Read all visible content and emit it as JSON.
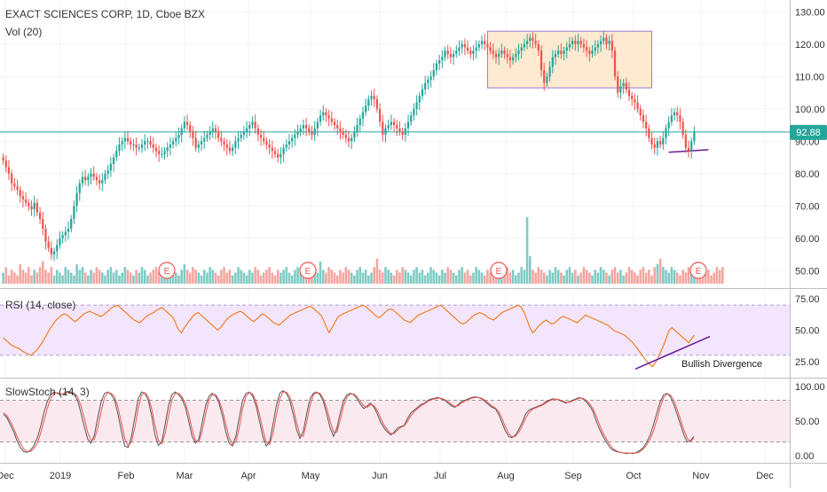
{
  "header": {
    "symbol_title": "EXACT SCIENCES CORP, 1D, Cboe BZX",
    "volume_label": "Vol (20)"
  },
  "colors": {
    "up": "#26a69a",
    "down": "#ef5350",
    "vol_up": "#80cbc4",
    "vol_down": "#f4a5a0",
    "price_line": "#26a69a",
    "range_box_fill": "#fde6c8",
    "range_box_border": "#9c7bd1",
    "trendline": "#6a1b9a",
    "rsi_line": "#ef6c00",
    "rsi_band": "#f3e5fc",
    "stoch_k": "#555555",
    "stoch_d": "#ef5350",
    "stoch_band": "#fbe9f0"
  },
  "chart_data": [
    {
      "type": "candlestick",
      "title": "EXACT SCIENCES CORP, 1D, Cboe BZX",
      "price_axis_ticks": [
        "130.00",
        "120.00",
        "110.00",
        "100.00",
        "90.00",
        "80.00",
        "70.00",
        "60.00",
        "50.00"
      ],
      "ylim": [
        46,
        132
      ],
      "last_price": 92.88,
      "last_price_label": "92.88",
      "closes": [
        84,
        82,
        80,
        77,
        76,
        75,
        73,
        72,
        71,
        70,
        69,
        71,
        68,
        66,
        63,
        59,
        57,
        55,
        56,
        58,
        60,
        61,
        62,
        63,
        66,
        70,
        74,
        77,
        79,
        78,
        79,
        80,
        79,
        78,
        77,
        78,
        80,
        81,
        83,
        85,
        87,
        89,
        90,
        91,
        90,
        89,
        89,
        88,
        88,
        89,
        90,
        90,
        89,
        88,
        87,
        86,
        86,
        87,
        88,
        89,
        90,
        91,
        92,
        94,
        96,
        95,
        93,
        91,
        88,
        89,
        90,
        91,
        92,
        93,
        94,
        93,
        91,
        90,
        89,
        88,
        87,
        88,
        90,
        91,
        92,
        93,
        94,
        95,
        96,
        94,
        92,
        91,
        90,
        89,
        88,
        87,
        86,
        85,
        86,
        88,
        89,
        90,
        91,
        92,
        93,
        94,
        95,
        94,
        93,
        92,
        94,
        96,
        98,
        99,
        98,
        97,
        96,
        95,
        94,
        93,
        92,
        91,
        90,
        91,
        93,
        95,
        97,
        99,
        101,
        103,
        104,
        103,
        100,
        96,
        92,
        94,
        95,
        96,
        95,
        94,
        93,
        92,
        94,
        96,
        98,
        100,
        102,
        104,
        106,
        108,
        109,
        110,
        112,
        114,
        115,
        116,
        118,
        117,
        116,
        117,
        118,
        119,
        120,
        119,
        118,
        117,
        118,
        119,
        120,
        121,
        120,
        119,
        118,
        117,
        116,
        117,
        118,
        117,
        116,
        115,
        116,
        117,
        118,
        119,
        120,
        121,
        122,
        121,
        120,
        118,
        112,
        108,
        110,
        113,
        116,
        117,
        118,
        117,
        118,
        119,
        120,
        121,
        120,
        121,
        120,
        119,
        118,
        117,
        118,
        119,
        120,
        121,
        122,
        120,
        121,
        118,
        110,
        105,
        107,
        108,
        106,
        104,
        103,
        102,
        100,
        98,
        96,
        94,
        91,
        89,
        88,
        90,
        89,
        91,
        94,
        96,
        98,
        99,
        98,
        96,
        92,
        88,
        87,
        90,
        93
      ],
      "volumes": [
        4,
        6,
        3,
        5,
        4,
        3,
        7,
        5,
        4,
        6,
        3,
        5,
        4,
        6,
        8,
        5,
        4,
        6,
        3,
        5,
        4,
        3,
        6,
        5,
        4,
        3,
        7,
        5,
        6,
        4,
        3,
        5,
        4,
        6,
        5,
        4,
        3,
        5,
        6,
        4,
        5,
        3,
        4,
        6,
        5,
        4,
        3,
        5,
        4,
        6,
        5,
        3,
        4,
        5,
        6,
        4,
        3,
        5,
        4,
        5,
        6,
        4,
        3,
        5,
        7,
        5,
        4,
        6,
        5,
        4,
        3,
        5,
        4,
        6,
        5,
        4,
        3,
        5,
        6,
        4,
        5,
        3,
        4,
        6,
        5,
        4,
        3,
        5,
        4,
        6,
        5,
        3,
        4,
        5,
        6,
        4,
        3,
        5,
        4,
        5,
        6,
        4,
        3,
        5,
        6,
        4,
        5,
        3,
        4,
        6,
        5,
        4,
        8,
        5,
        4,
        6,
        5,
        4,
        3,
        5,
        4,
        6,
        5,
        4,
        3,
        5,
        6,
        4,
        5,
        3,
        4,
        6,
        9,
        5,
        4,
        6,
        5,
        4,
        3,
        5,
        4,
        6,
        5,
        4,
        3,
        5,
        6,
        4,
        5,
        3,
        4,
        6,
        5,
        4,
        3,
        5,
        4,
        6,
        5,
        4,
        3,
        5,
        6,
        4,
        5,
        3,
        4,
        6,
        5,
        4,
        3,
        5,
        4,
        6,
        5,
        4,
        3,
        5,
        6,
        4,
        5,
        3,
        4,
        6,
        5,
        24,
        10,
        5,
        4,
        6,
        5,
        4,
        3,
        5,
        4,
        6,
        5,
        4,
        3,
        5,
        6,
        4,
        5,
        3,
        4,
        6,
        5,
        4,
        3,
        5,
        4,
        6,
        5,
        4,
        3,
        5,
        6,
        4,
        5,
        3,
        4,
        6,
        5,
        4,
        3,
        5,
        6,
        4,
        5,
        3,
        6,
        7,
        9,
        6,
        5,
        4,
        6,
        5,
        4,
        3,
        5,
        4,
        6,
        5,
        4,
        3,
        5,
        6,
        4,
        5,
        3,
        4,
        6,
        5,
        6
      ]
    },
    {
      "type": "line",
      "title": "RSI (14, close)",
      "axis_ticks": [
        "75.00",
        "50.00",
        "25.00"
      ],
      "ylim": [
        15,
        80
      ],
      "band": [
        30,
        70
      ],
      "values": [
        44,
        42,
        40,
        38,
        37,
        36,
        35,
        33,
        32,
        31,
        30,
        32,
        34,
        37,
        40,
        44,
        48,
        52,
        55,
        58,
        60,
        62,
        63,
        62,
        60,
        58,
        57,
        59,
        61,
        63,
        64,
        65,
        64,
        63,
        62,
        61,
        62,
        64,
        66,
        68,
        69,
        70,
        68,
        66,
        64,
        62,
        60,
        58,
        57,
        56,
        58,
        60,
        62,
        63,
        64,
        66,
        67,
        68,
        66,
        64,
        62,
        60,
        55,
        50,
        48,
        52,
        55,
        58,
        61,
        63,
        64,
        62,
        60,
        58,
        56,
        54,
        52,
        50,
        52,
        55,
        58,
        60,
        62,
        63,
        64,
        65,
        64,
        62,
        60,
        58,
        57,
        59,
        61,
        63,
        62,
        60,
        58,
        56,
        55,
        54,
        56,
        58,
        60,
        62,
        63,
        64,
        65,
        66,
        67,
        68,
        69,
        68,
        66,
        64,
        62,
        58,
        52,
        48,
        52,
        56,
        60,
        62,
        63,
        64,
        65,
        66,
        67,
        68,
        69,
        70,
        69,
        67,
        65,
        63,
        61,
        60,
        62,
        64,
        66,
        67,
        66,
        64,
        62,
        60,
        58,
        57,
        56,
        58,
        60,
        62,
        63,
        64,
        65,
        66,
        67,
        68,
        69,
        70,
        68,
        66,
        64,
        62,
        60,
        58,
        56,
        55,
        56,
        58,
        60,
        62,
        63,
        64,
        63,
        62,
        60,
        59,
        58,
        60,
        62,
        64,
        65,
        66,
        67,
        68,
        69,
        70,
        68,
        64,
        58,
        52,
        48,
        50,
        53,
        55,
        57,
        58,
        56,
        55,
        56,
        58,
        60,
        61,
        60,
        59,
        58,
        57,
        56,
        58,
        60,
        62,
        61,
        60,
        59,
        58,
        57,
        56,
        55,
        54,
        52,
        50,
        49,
        48,
        47,
        46,
        44,
        42,
        40,
        37,
        34,
        31,
        28,
        25,
        23,
        21,
        24,
        28,
        33,
        38,
        44,
        50,
        52,
        50,
        48,
        46,
        44,
        42,
        40,
        43,
        46
      ],
      "annotation": "Bullish Divergence"
    },
    {
      "type": "line",
      "title": "SlowStoch (14, 3)",
      "axis_ticks": [
        "100.00",
        "50.00",
        "0.00"
      ],
      "ylim": [
        -5,
        105
      ],
      "band": [
        20,
        80
      ],
      "series": [
        {
          "values": [
            60,
            55,
            45,
            35,
            22,
            12,
            6,
            5,
            8,
            14,
            25,
            42,
            62,
            78,
            88,
            92,
            90,
            88,
            90,
            93,
            92,
            88,
            80,
            62,
            42,
            24,
            18,
            30,
            55,
            78,
            90,
            92,
            88,
            80,
            60,
            35,
            14,
            12,
            28,
            55,
            82,
            92,
            90,
            80,
            58,
            30,
            15,
            20,
            45,
            72,
            88,
            92,
            88,
            82,
            70,
            50,
            28,
            18,
            24,
            48,
            72,
            86,
            90,
            86,
            76,
            58,
            35,
            18,
            14,
            28,
            55,
            80,
            90,
            92,
            86,
            72,
            50,
            28,
            14,
            20,
            45,
            72,
            90,
            94,
            90,
            80,
            60,
            38,
            25,
            35,
            60,
            82,
            90,
            92,
            88,
            78,
            60,
            40,
            28,
            40,
            62,
            80,
            88,
            90,
            88,
            82,
            74,
            68,
            72,
            76,
            70,
            60,
            48,
            40,
            34,
            30,
            34,
            40,
            42,
            44,
            54,
            62,
            66,
            70,
            74,
            76,
            80,
            82,
            83,
            84,
            82,
            80,
            76,
            72,
            70,
            74,
            78,
            80,
            82,
            84,
            85,
            84,
            82,
            78,
            74,
            70,
            68,
            60,
            48,
            36,
            28,
            26,
            30,
            38,
            48,
            60,
            66,
            68,
            70,
            72,
            74,
            78,
            80,
            82,
            82,
            80,
            78,
            76,
            78,
            80,
            82,
            84,
            82,
            78,
            72,
            64,
            50,
            38,
            28,
            20,
            12,
            8,
            6,
            5,
            4,
            3,
            4,
            3,
            5,
            8,
            12,
            20,
            30,
            45,
            62,
            78,
            88,
            90,
            85,
            74,
            60,
            45,
            30,
            20,
            22,
            28
          ]
        },
        {
          "values": [
            62,
            58,
            50,
            40,
            28,
            18,
            10,
            6,
            6,
            10,
            18,
            32,
            50,
            68,
            82,
            90,
            91,
            89,
            89,
            91,
            92,
            90,
            85,
            72,
            54,
            34,
            22,
            24,
            40,
            64,
            84,
            91,
            90,
            85,
            70,
            48,
            25,
            14,
            20,
            40,
            68,
            88,
            91,
            85,
            68,
            44,
            22,
            17,
            32,
            58,
            80,
            90,
            90,
            85,
            76,
            60,
            38,
            22,
            20,
            36,
            60,
            80,
            88,
            88,
            80,
            66,
            46,
            26,
            16,
            20,
            40,
            68,
            86,
            91,
            89,
            78,
            60,
            38,
            20,
            16,
            32,
            58,
            82,
            92,
            92,
            85,
            70,
            48,
            30,
            28,
            48,
            72,
            88,
            91,
            90,
            82,
            68,
            50,
            34,
            34,
            52,
            72,
            85,
            89,
            89,
            85,
            78,
            72,
            70,
            74,
            72,
            65,
            54,
            44,
            37,
            32,
            32,
            37,
            41,
            43,
            50,
            58,
            64,
            68,
            72,
            75,
            78,
            81,
            82,
            83,
            83,
            81,
            78,
            74,
            71,
            72,
            76,
            79,
            81,
            83,
            84,
            84,
            83,
            80,
            76,
            72,
            69,
            64,
            54,
            42,
            32,
            27,
            28,
            34,
            43,
            54,
            62,
            67,
            69,
            71,
            73,
            76,
            79,
            81,
            82,
            81,
            79,
            77,
            77,
            79,
            81,
            83,
            83,
            80,
            75,
            68,
            57,
            44,
            33,
            24,
            16,
            10,
            7,
            5,
            4,
            4,
            4,
            4,
            4,
            6,
            10,
            16,
            24,
            36,
            52,
            70,
            84,
            89,
            88,
            80,
            67,
            52,
            37,
            25,
            21,
            25
          ]
        }
      ]
    }
  ],
  "price_annotations": {
    "range_box_label": "",
    "earnings_markers": [
      "E",
      "E",
      "E",
      "E"
    ]
  },
  "time_axis_labels": [
    "Dec",
    "2019",
    "Feb",
    "Mar",
    "Apr",
    "May",
    "Jun",
    "Jul",
    "Aug",
    "Sep",
    "Oct",
    "Nov",
    "Dec"
  ]
}
